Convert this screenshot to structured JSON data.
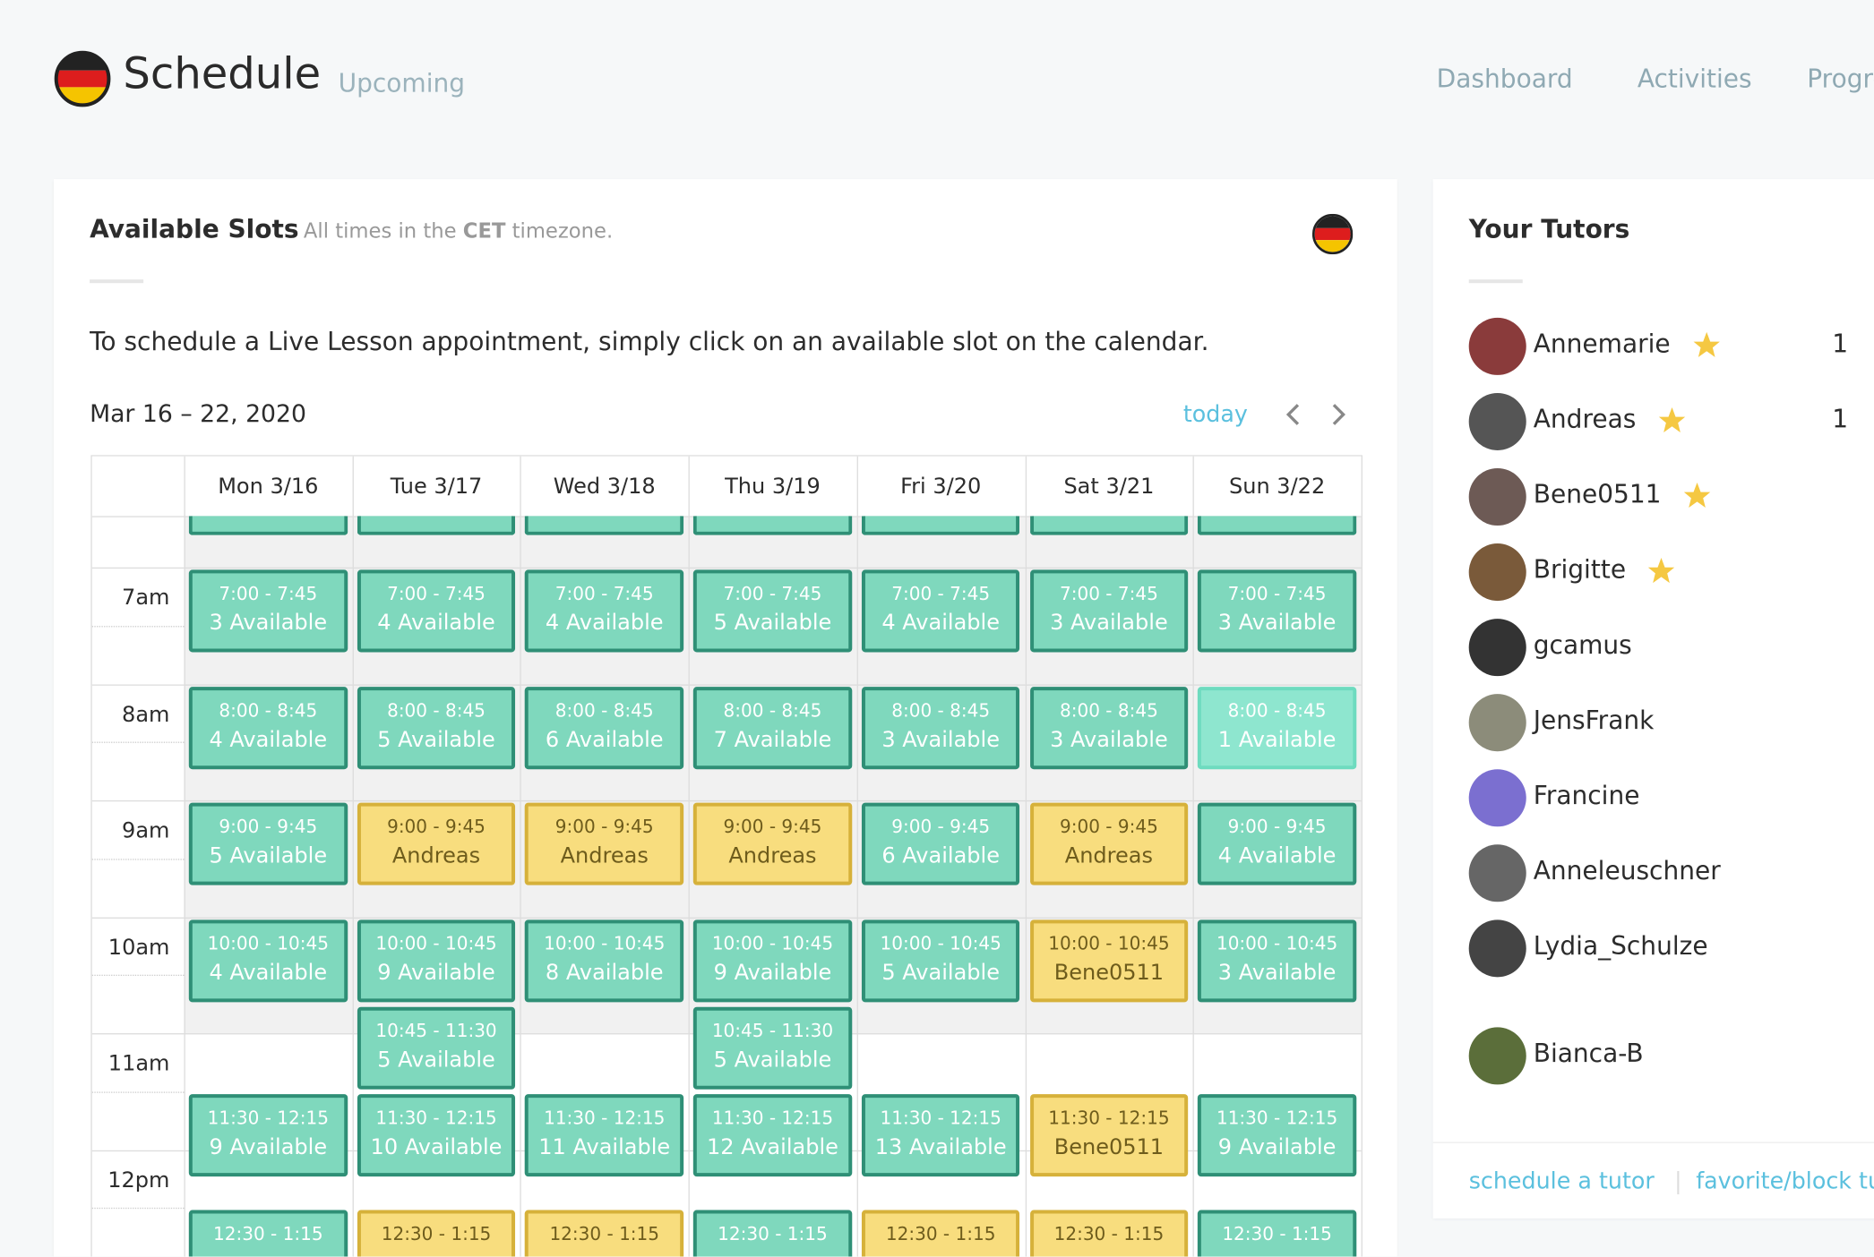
{
  "header": {
    "title": "Schedule",
    "subtitle": "Upcoming",
    "nav": [
      "Dashboard",
      "Activities",
      "Progress"
    ]
  },
  "slots_panel": {
    "title": "Available Slots",
    "timezone_note": [
      "All times in the ",
      "CET",
      " timezone."
    ],
    "instruction": "To schedule a Live Lesson appointment, simply click on an available slot on the calendar.",
    "date_range": "Mar 16 – 22, 2020",
    "today_button": "today",
    "hours": [
      "7am",
      "8am",
      "9am",
      "10am",
      "11am",
      "12pm"
    ],
    "days": [
      {
        "label": "Mon 3/16",
        "slots": [
          {
            "time": "7:00 - 7:45",
            "label": "3 Available",
            "status": "available"
          },
          {
            "time": "8:00 - 8:45",
            "label": "4 Available",
            "status": "available"
          },
          {
            "time": "9:00 - 9:45",
            "label": "5 Available",
            "status": "available"
          },
          {
            "time": "10:00 - 10:45",
            "label": "4 Available",
            "status": "available"
          },
          {
            "time": "11:30 - 12:15",
            "label": "9 Available",
            "status": "available"
          },
          {
            "time": "12:30 - 1:15",
            "status": "available"
          }
        ]
      },
      {
        "label": "Tue 3/17",
        "slots": [
          {
            "time": "7:00 - 7:45",
            "label": "4 Available",
            "status": "available"
          },
          {
            "time": "8:00 - 8:45",
            "label": "5 Available",
            "status": "available"
          },
          {
            "time": "9:00 - 9:45",
            "label": "Andreas",
            "status": "booked"
          },
          {
            "time": "10:00 - 10:45",
            "label": "9 Available",
            "status": "available"
          },
          {
            "time": "10:45 - 11:30",
            "label": "5 Available",
            "status": "available"
          },
          {
            "time": "11:30 - 12:15",
            "label": "10 Available",
            "status": "available"
          },
          {
            "time": "12:30 - 1:15",
            "status": "booked"
          }
        ]
      },
      {
        "label": "Wed 3/18",
        "slots": [
          {
            "time": "7:00 - 7:45",
            "label": "4 Available",
            "status": "available"
          },
          {
            "time": "8:00 - 8:45",
            "label": "6 Available",
            "status": "available"
          },
          {
            "time": "9:00 - 9:45",
            "label": "Andreas",
            "status": "booked"
          },
          {
            "time": "10:00 - 10:45",
            "label": "8 Available",
            "status": "available"
          },
          {
            "time": "11:30 - 12:15",
            "label": "11 Available",
            "status": "available"
          },
          {
            "time": "12:30 - 1:15",
            "status": "booked"
          }
        ]
      },
      {
        "label": "Thu 3/19",
        "slots": [
          {
            "time": "7:00 - 7:45",
            "label": "5 Available",
            "status": "available"
          },
          {
            "time": "8:00 - 8:45",
            "label": "7 Available",
            "status": "available"
          },
          {
            "time": "9:00 - 9:45",
            "label": "Andreas",
            "status": "booked"
          },
          {
            "time": "10:00 - 10:45",
            "label": "9 Available",
            "status": "available"
          },
          {
            "time": "10:45 - 11:30",
            "label": "5 Available",
            "status": "available"
          },
          {
            "time": "11:30 - 12:15",
            "label": "12 Available",
            "status": "available"
          },
          {
            "time": "12:30 - 1:15",
            "status": "available"
          }
        ]
      },
      {
        "label": "Fri 3/20",
        "slots": [
          {
            "time": "7:00 - 7:45",
            "label": "4 Available",
            "status": "available"
          },
          {
            "time": "8:00 - 8:45",
            "label": "3 Available",
            "status": "available"
          },
          {
            "time": "9:00 - 9:45",
            "label": "6 Available",
            "status": "available"
          },
          {
            "time": "10:00 - 10:45",
            "label": "5 Available",
            "status": "available"
          },
          {
            "time": "11:30 - 12:15",
            "label": "13 Available",
            "status": "available"
          },
          {
            "time": "12:30 - 1:15",
            "status": "booked"
          }
        ]
      },
      {
        "label": "Sat 3/21",
        "slots": [
          {
            "time": "7:00 - 7:45",
            "label": "3 Available",
            "status": "available"
          },
          {
            "time": "8:00 - 8:45",
            "label": "3 Available",
            "status": "available"
          },
          {
            "time": "9:00 - 9:45",
            "label": "Andreas",
            "status": "booked"
          },
          {
            "time": "10:00 - 10:45",
            "label": "Bene0511",
            "status": "booked"
          },
          {
            "time": "11:30 - 12:15",
            "label": "Bene0511",
            "status": "booked"
          },
          {
            "time": "12:30 - 1:15",
            "status": "booked"
          }
        ]
      },
      {
        "label": "Sun 3/22",
        "slots": [
          {
            "time": "7:00 - 7:45",
            "label": "3 Available",
            "status": "available"
          },
          {
            "time": "8:00 - 8:45",
            "label": "1 Available",
            "status": "few"
          },
          {
            "time": "9:00 - 9:45",
            "label": "4 Available",
            "status": "available"
          },
          {
            "time": "10:00 - 10:45",
            "label": "3 Available",
            "status": "available"
          },
          {
            "time": "11:30 - 12:15",
            "label": "9 Available",
            "status": "available"
          },
          {
            "time": "12:30 - 1:15",
            "status": "available"
          }
        ]
      }
    ]
  },
  "tutors_panel": {
    "title": "Your Tutors",
    "tutors": [
      {
        "name": "Annemarie",
        "starred": true,
        "count": 1
      },
      {
        "name": "Andreas",
        "starred": true,
        "count": 1
      },
      {
        "name": "Bene0511",
        "starred": true
      },
      {
        "name": "Brigitte",
        "starred": true
      },
      {
        "name": "gcamus",
        "starred": false
      },
      {
        "name": "JensFrank",
        "starred": false
      },
      {
        "name": "Francine",
        "starred": false
      },
      {
        "name": "Anneleuschner",
        "starred": false
      },
      {
        "name": "Lydia_Schulze",
        "starred": false
      },
      {
        "name": "Bianca-B",
        "starred": false
      }
    ],
    "links": [
      "schedule a tutor",
      "favorite/block tutors"
    ]
  }
}
